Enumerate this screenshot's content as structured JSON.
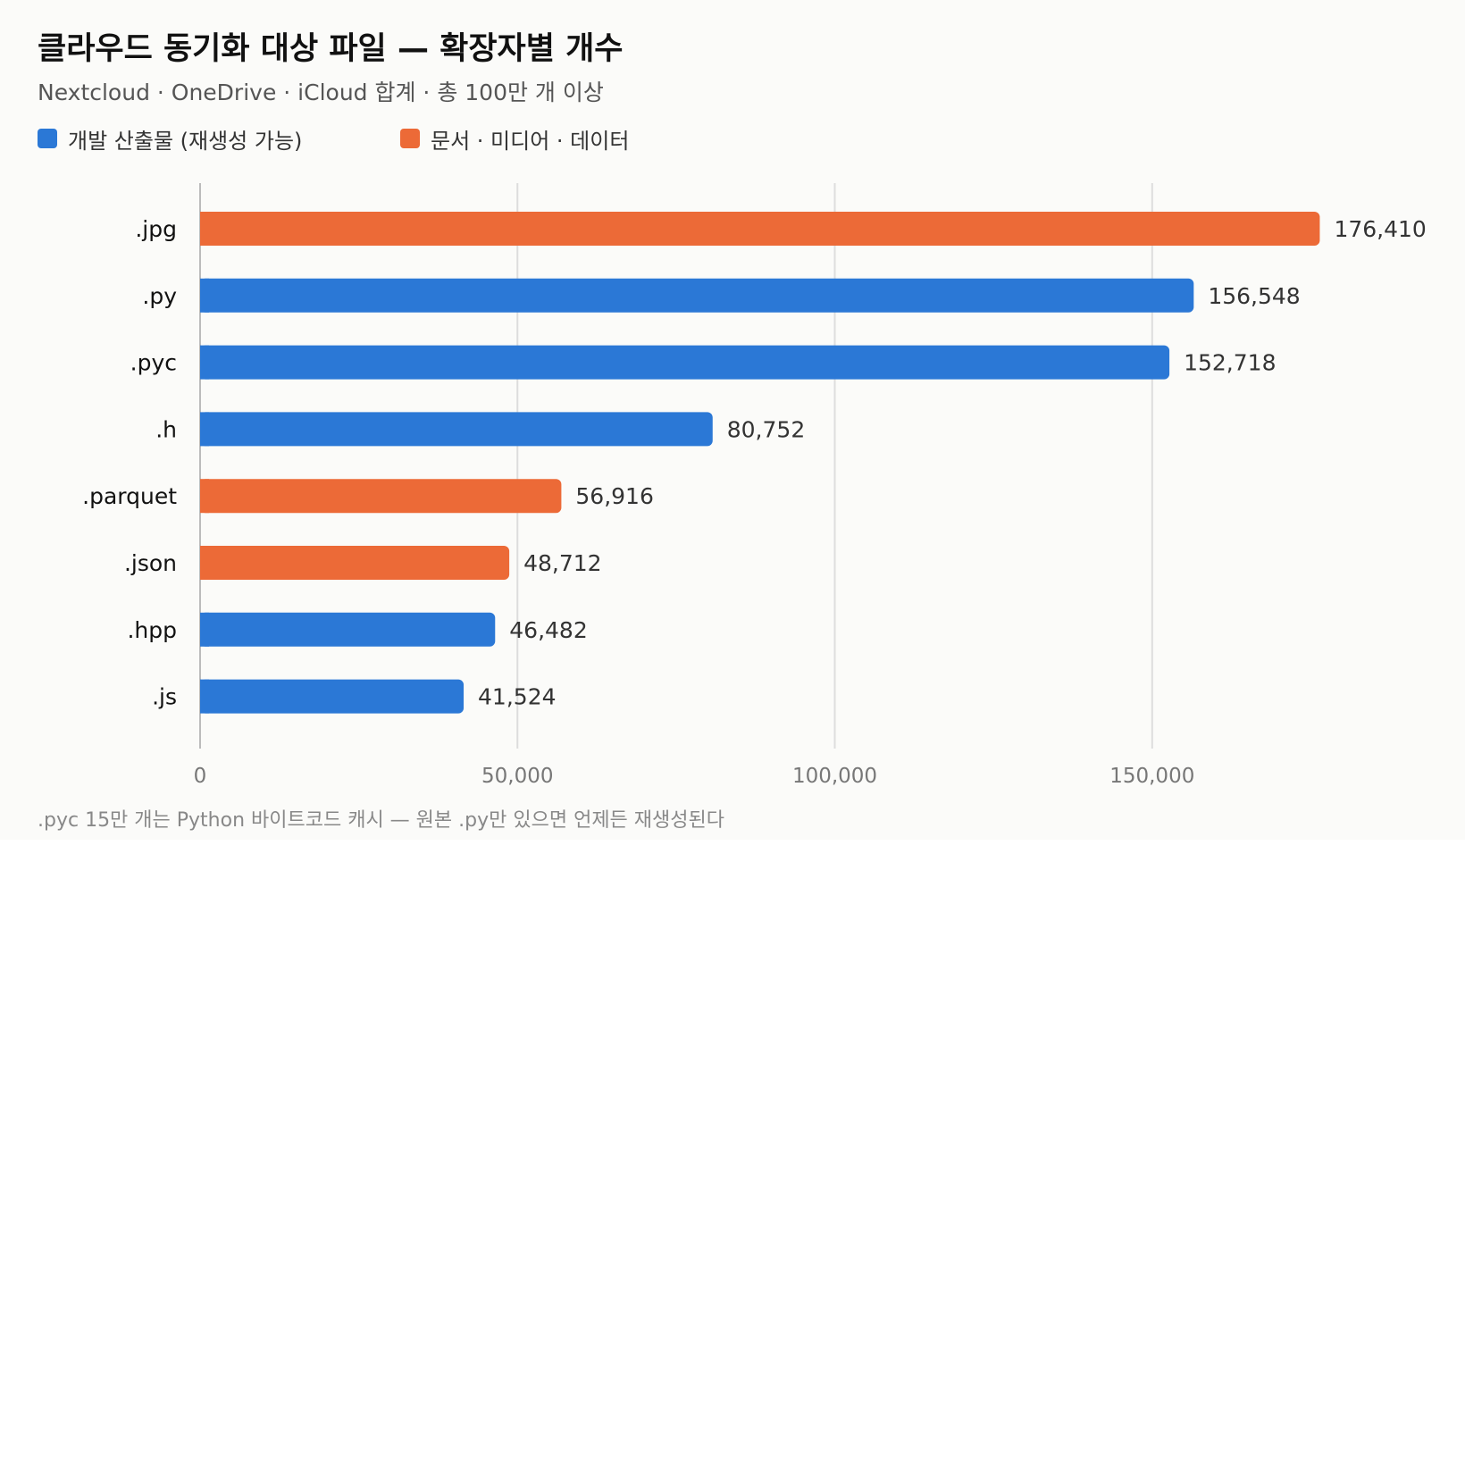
{
  "title": "클라우드 동기화 대상 파일 — 확장자별 개수",
  "subtitle": "Nextcloud · OneDrive · iCloud 합계 · 총 100만 개 이상",
  "legend": [
    {
      "label": "개발 산출물 (재생성 가능)",
      "color": "#2b78d6"
    },
    {
      "label": "문서 · 미디어 · 데이터",
      "color": "#ec6a37"
    }
  ],
  "footnote": ".pyc 15만 개는 Python 바이트코드 캐시 — 원본 .py만 있으면 언제든 재생성된다",
  "colors": {
    "background": "#fbfbf9",
    "grid": "#dddddd",
    "axis": "#bbbbbb",
    "dev": "#2b78d6",
    "doc": "#ec6a37"
  },
  "chart_data": {
    "type": "bar",
    "orientation": "horizontal",
    "title": "클라우드 동기화 대상 파일 — 확장자별 개수",
    "subtitle": "Nextcloud · OneDrive · iCloud 합계 · 총 100만 개 이상",
    "xlabel": "",
    "ylabel": "",
    "xlim": [
      0,
      190000
    ],
    "xticks": [
      0,
      50000,
      100000,
      150000
    ],
    "xtick_labels": [
      "0",
      "50,000",
      "100,000",
      "150,000"
    ],
    "grid": "vertical",
    "legend_position": "top-left",
    "categories": [
      ".jpg",
      ".py",
      ".pyc",
      ".h",
      ".parquet",
      ".json",
      ".hpp",
      ".js"
    ],
    "values": [
      176410,
      156548,
      152718,
      80752,
      56916,
      48712,
      46482,
      41524
    ],
    "value_labels": [
      "176,410",
      "156,548",
      "152,718",
      "80,752",
      "56,916",
      "48,712",
      "46,482",
      "41,524"
    ],
    "groups": [
      "doc",
      "dev",
      "dev",
      "dev",
      "doc",
      "doc",
      "dev",
      "dev"
    ],
    "group_names": {
      "dev": "개발 산출물 (재생성 가능)",
      "doc": "문서 · 미디어 · 데이터"
    }
  }
}
